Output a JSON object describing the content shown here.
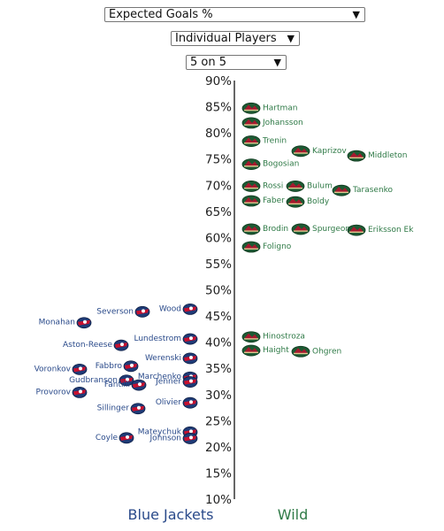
{
  "controls": {
    "stat_select": "Expected Goals %",
    "mode_select": "Individual Players",
    "situation_select": "5 on 5"
  },
  "colors": {
    "blue_jackets": "#2a4a8a",
    "wild": "#2f7a47",
    "axis": "#333333"
  },
  "chart_data": {
    "type": "scatter",
    "title": "",
    "ylabel": "",
    "ylim": [
      10,
      90
    ],
    "yticks": [
      "10%",
      "15%",
      "20%",
      "25%",
      "30%",
      "35%",
      "40%",
      "45%",
      "50%",
      "55%",
      "60%",
      "65%",
      "70%",
      "75%",
      "80%",
      "85%",
      "90%"
    ],
    "teams": [
      {
        "name": "Blue Jackets",
        "side": "left",
        "icon": "blue-jackets-logo-icon",
        "players": [
          {
            "name": "Severson",
            "value": 45.8
          },
          {
            "name": "Wood",
            "value": 46.3
          },
          {
            "name": "Monahan",
            "value": 43.7
          },
          {
            "name": "Lundestrom",
            "value": 40.6
          },
          {
            "name": "Aston-Reese",
            "value": 39.4
          },
          {
            "name": "Werenski",
            "value": 36.9
          },
          {
            "name": "Fabbro",
            "value": 35.4
          },
          {
            "name": "Voronkov",
            "value": 34.8
          },
          {
            "name": "Marchenko",
            "value": 33.3
          },
          {
            "name": "Gudbranson",
            "value": 32.7
          },
          {
            "name": "Jenner",
            "value": 32.4
          },
          {
            "name": "Fantilli",
            "value": 31.8
          },
          {
            "name": "Provorov",
            "value": 30.4
          },
          {
            "name": "Olivier",
            "value": 28.4
          },
          {
            "name": "Sillinger",
            "value": 27.3
          },
          {
            "name": "Mateychuk",
            "value": 22.8
          },
          {
            "name": "Coyle",
            "value": 21.7
          },
          {
            "name": "Johnson",
            "value": 21.6
          }
        ]
      },
      {
        "name": "Wild",
        "side": "right",
        "icon": "wild-logo-icon",
        "players": [
          {
            "name": "Hartman",
            "value": 84.7
          },
          {
            "name": "Johansson",
            "value": 81.9
          },
          {
            "name": "Trenin",
            "value": 78.4
          },
          {
            "name": "Kaprizov",
            "value": 76.5
          },
          {
            "name": "Middleton",
            "value": 75.6
          },
          {
            "name": "Bogosian",
            "value": 74.0
          },
          {
            "name": "Rossi",
            "value": 69.8
          },
          {
            "name": "Bulum",
            "value": 69.8
          },
          {
            "name": "Tarasenko",
            "value": 69.0
          },
          {
            "name": "Faber",
            "value": 67.0
          },
          {
            "name": "Boldy",
            "value": 66.8
          },
          {
            "name": "Brodin",
            "value": 61.6
          },
          {
            "name": "Spurgeon",
            "value": 61.6
          },
          {
            "name": "Eriksson Ek",
            "value": 61.4
          },
          {
            "name": "Foligno",
            "value": 58.2
          },
          {
            "name": "Hinostroza",
            "value": 41.0
          },
          {
            "name": "Haight",
            "value": 38.4
          },
          {
            "name": "Ohgren",
            "value": 38.2
          }
        ]
      }
    ]
  }
}
